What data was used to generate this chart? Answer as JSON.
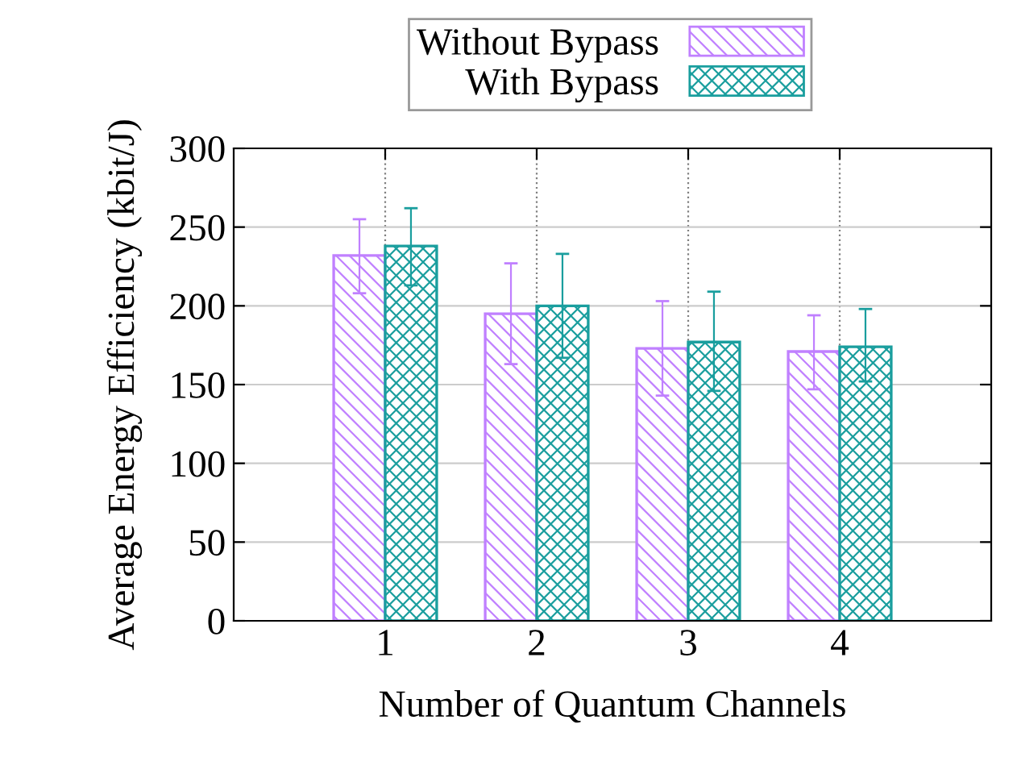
{
  "chart_data": {
    "type": "bar",
    "xlabel": "Number of Quantum Channels",
    "ylabel": "Average Energy Efficiency (kbit/J)",
    "categories": [
      "1",
      "2",
      "3",
      "4"
    ],
    "series": [
      {
        "name": "Without Bypass",
        "color": "#c080ff",
        "values": [
          232,
          195,
          173,
          171
        ],
        "errors": [
          [
            208,
            255
          ],
          [
            163,
            227
          ],
          [
            143,
            203
          ],
          [
            147,
            194
          ]
        ]
      },
      {
        "name": "With Bypass",
        "color": "#1a9e9e",
        "values": [
          238,
          200,
          177,
          174
        ],
        "errors": [
          [
            213,
            262
          ],
          [
            167,
            233
          ],
          [
            146,
            209
          ],
          [
            152,
            198
          ]
        ]
      }
    ],
    "ylim": [
      0,
      300
    ],
    "yticks": [
      0,
      50,
      100,
      150,
      200,
      250,
      300
    ],
    "grid": true,
    "legend": "top"
  }
}
